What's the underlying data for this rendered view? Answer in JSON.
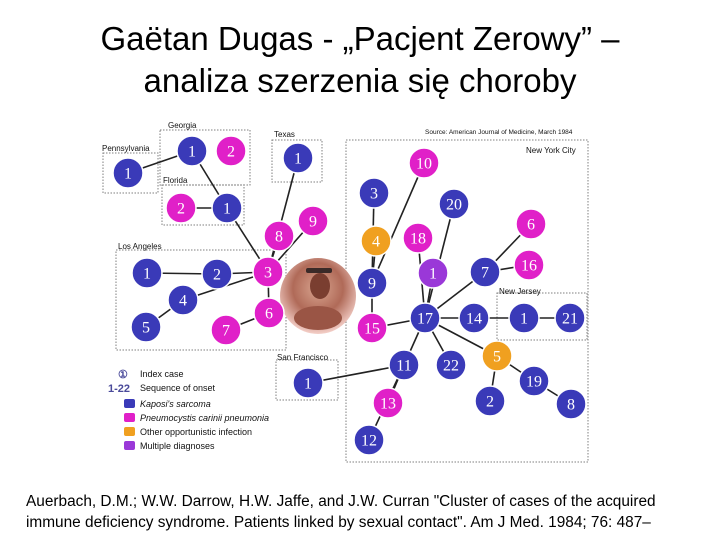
{
  "title": {
    "line1": "Gaëtan Dugas - „Pacjent Zerowy” –",
    "line2": "analiza szerzenia się choroby"
  },
  "citation": "Auerbach, D.M.; W.W. Darrow, H.W. Jaffe, and J.W. Curran \"Cluster of cases of the acquired immune deficiency syndrome. Patients linked by sexual contact\". Am J Med. 1984; 76: 487–",
  "diagram": {
    "source": "Source: American Journal of Medicine, March 1984",
    "regions": {
      "georgia": "Georgia",
      "pennsylvania": "Pennsylvania",
      "texas": "Texas",
      "florida": "Florida",
      "los_angeles": "Los Angeles",
      "new_york": "New York City",
      "new_jersey": "New Jersey",
      "san_francisco": "San Francisco"
    },
    "colors": {
      "kaposi": "#3a3ab8",
      "pneumocystis": "#e020c8",
      "other": "#f0a020",
      "multiple": "#9a38d8"
    },
    "nodes": [
      {
        "id": "pa1",
        "label": "1",
        "type": "kaposi"
      },
      {
        "id": "ga1",
        "label": "1",
        "type": "kaposi"
      },
      {
        "id": "ga2",
        "label": "2",
        "type": "pneumocystis"
      },
      {
        "id": "tx1",
        "label": "1",
        "type": "kaposi"
      },
      {
        "id": "fl2",
        "label": "2",
        "type": "pneumocystis"
      },
      {
        "id": "fl1",
        "label": "1",
        "type": "kaposi"
      },
      {
        "id": "la8",
        "label": "8",
        "type": "pneumocystis"
      },
      {
        "id": "la9",
        "label": "9",
        "type": "pneumocystis"
      },
      {
        "id": "la1",
        "label": "1",
        "type": "kaposi"
      },
      {
        "id": "la2",
        "label": "2",
        "type": "kaposi"
      },
      {
        "id": "la3",
        "label": "3",
        "type": "pneumocystis"
      },
      {
        "id": "la4",
        "label": "4",
        "type": "kaposi"
      },
      {
        "id": "la5",
        "label": "5",
        "type": "kaposi"
      },
      {
        "id": "la7",
        "label": "7",
        "type": "pneumocystis"
      },
      {
        "id": "la6",
        "label": "6",
        "type": "pneumocystis"
      },
      {
        "id": "ny10",
        "label": "10",
        "type": "pneumocystis"
      },
      {
        "id": "ny3",
        "label": "3",
        "type": "kaposi"
      },
      {
        "id": "ny20",
        "label": "20",
        "type": "kaposi"
      },
      {
        "id": "ny6",
        "label": "6",
        "type": "pneumocystis"
      },
      {
        "id": "ny4",
        "label": "4",
        "type": "other"
      },
      {
        "id": "ny18",
        "label": "18",
        "type": "pneumocystis"
      },
      {
        "id": "ny16",
        "label": "16",
        "type": "pneumocystis"
      },
      {
        "id": "ny9",
        "label": "9",
        "type": "kaposi"
      },
      {
        "id": "ny1",
        "label": "1",
        "type": "multiple"
      },
      {
        "id": "ny7",
        "label": "7",
        "type": "kaposi"
      },
      {
        "id": "ny15",
        "label": "15",
        "type": "pneumocystis"
      },
      {
        "id": "ny17",
        "label": "17",
        "type": "kaposi"
      },
      {
        "id": "nj14",
        "label": "14",
        "type": "kaposi"
      },
      {
        "id": "nj1",
        "label": "1",
        "type": "kaposi"
      },
      {
        "id": "nj21",
        "label": "21",
        "type": "kaposi"
      },
      {
        "id": "ny11",
        "label": "11",
        "type": "kaposi"
      },
      {
        "id": "ny22",
        "label": "22",
        "type": "kaposi"
      },
      {
        "id": "ny5",
        "label": "5",
        "type": "other"
      },
      {
        "id": "sf1",
        "label": "1",
        "type": "kaposi"
      },
      {
        "id": "ny19",
        "label": "19",
        "type": "kaposi"
      },
      {
        "id": "ny13",
        "label": "13",
        "type": "pneumocystis"
      },
      {
        "id": "ny2",
        "label": "2",
        "type": "kaposi"
      },
      {
        "id": "ny8",
        "label": "8",
        "type": "kaposi"
      },
      {
        "id": "ny12",
        "label": "12",
        "type": "kaposi"
      }
    ],
    "edges": [
      [
        "pa1",
        "ga1"
      ],
      [
        "ga1",
        "fl1"
      ],
      [
        "fl2",
        "fl1"
      ],
      [
        "fl1",
        "la3"
      ],
      [
        "tx1",
        "la3"
      ],
      [
        "la8",
        "la3"
      ],
      [
        "la9",
        "la3"
      ],
      [
        "la1",
        "la2"
      ],
      [
        "la2",
        "la3"
      ],
      [
        "la4",
        "la3"
      ],
      [
        "la5",
        "la4"
      ],
      [
        "la7",
        "la6"
      ],
      [
        "la6",
        "la3"
      ],
      [
        "ny10",
        "ny9"
      ],
      [
        "ny3",
        "ny9"
      ],
      [
        "ny4",
        "ny9"
      ],
      [
        "ny20",
        "ny17"
      ],
      [
        "ny18",
        "ny17"
      ],
      [
        "ny1",
        "ny17"
      ],
      [
        "ny6",
        "ny7"
      ],
      [
        "ny16",
        "ny7"
      ],
      [
        "ny7",
        "ny17"
      ],
      [
        "ny15",
        "ny17"
      ],
      [
        "ny17",
        "nj14"
      ],
      [
        "nj14",
        "nj1"
      ],
      [
        "nj1",
        "nj21"
      ],
      [
        "ny17",
        "ny11"
      ],
      [
        "ny17",
        "ny22"
      ],
      [
        "ny11",
        "sf1"
      ],
      [
        "ny11",
        "ny13"
      ],
      [
        "ny11",
        "ny12"
      ],
      [
        "ny17",
        "ny5"
      ],
      [
        "ny5",
        "ny19"
      ],
      [
        "ny5",
        "ny2"
      ],
      [
        "ny19",
        "ny8"
      ],
      [
        "ny9",
        "ny15"
      ]
    ],
    "legend": [
      {
        "code": "①",
        "text": "Index case"
      },
      {
        "code": "1-22",
        "text": "Sequence of onset"
      },
      {
        "swatch": "kaposi",
        "text": "Kaposi's sarcoma"
      },
      {
        "swatch": "pneumocystis",
        "text": "Pneumocystis carinii pneumonia"
      },
      {
        "swatch": "other",
        "text": "Other opportunistic infection"
      },
      {
        "swatch": "multiple",
        "text": "Multiple diagnoses"
      }
    ]
  }
}
